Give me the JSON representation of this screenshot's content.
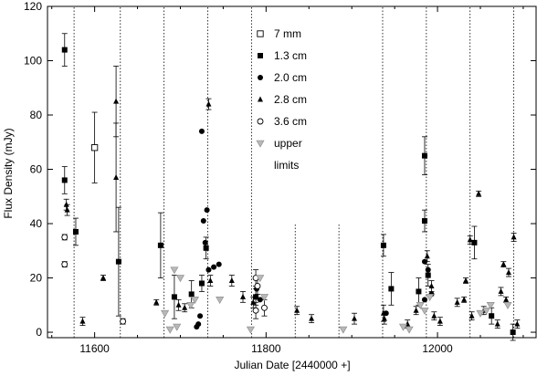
{
  "chart_data": {
    "type": "scatter",
    "title": "",
    "xlabel": "Julian Date [2440000 +]",
    "ylabel": "Flux Density (mJy)",
    "xlim": [
      11545,
      12115
    ],
    "ylim": [
      -2,
      120
    ],
    "xticks": [
      11600,
      11800,
      12000
    ],
    "yticks": [
      0,
      20,
      40,
      60,
      80,
      100,
      120
    ],
    "grid": false,
    "legend_position": "top-center",
    "legend": [
      {
        "label": "7 mm",
        "marker": "square-open"
      },
      {
        "label": "1.3 cm",
        "marker": "square-filled"
      },
      {
        "label": "2.0 cm",
        "marker": "circle-filled"
      },
      {
        "label": "2.8 cm",
        "marker": "triangle-filled"
      },
      {
        "label": "3.6 cm",
        "marker": "circle-open"
      },
      {
        "label": "upper",
        "marker": "triangle-down-gray"
      },
      {
        "label": "limits",
        "marker": "none"
      }
    ],
    "vertical_lines": [
      {
        "x": 11576,
        "y_top": 120
      },
      {
        "x": 11630,
        "y_top": 120
      },
      {
        "x": 11681,
        "y_top": 120
      },
      {
        "x": 11732,
        "y_top": 120
      },
      {
        "x": 11783,
        "y_top": 120
      },
      {
        "x": 11834,
        "y_top": 40
      },
      {
        "x": 11885,
        "y_top": 40
      },
      {
        "x": 11936,
        "y_top": 120
      },
      {
        "x": 11987,
        "y_top": 120
      },
      {
        "x": 12038,
        "y_top": 120
      },
      {
        "x": 12089,
        "y_top": 120
      }
    ],
    "series": [
      {
        "marker": "square-open",
        "points": [
          {
            "x": 11600,
            "y": 68,
            "err": 13
          }
        ]
      },
      {
        "marker": "square-filled",
        "points": [
          {
            "x": 11565,
            "y": 104,
            "err": 6
          },
          {
            "x": 11565,
            "y": 56,
            "err": 5
          },
          {
            "x": 11578,
            "y": 37,
            "err": 5
          },
          {
            "x": 11628,
            "y": 26,
            "err": 20
          },
          {
            "x": 11677,
            "y": 32,
            "err": 12
          },
          {
            "x": 11693,
            "y": 13,
            "err": 8
          },
          {
            "x": 11713,
            "y": 14,
            "err": 5
          },
          {
            "x": 11725,
            "y": 18,
            "err": 3
          },
          {
            "x": 11730,
            "y": 31,
            "err": 4
          },
          {
            "x": 11788,
            "y": 13,
            "err": 3
          },
          {
            "x": 11937,
            "y": 32,
            "err": 4
          },
          {
            "x": 11946,
            "y": 16,
            "err": 6
          },
          {
            "x": 11978,
            "y": 15,
            "err": 5
          },
          {
            "x": 11985,
            "y": 65,
            "err": 7
          },
          {
            "x": 11985,
            "y": 41,
            "err": 4
          },
          {
            "x": 11989,
            "y": 21,
            "err": 4
          },
          {
            "x": 12043,
            "y": 33,
            "err": 6
          },
          {
            "x": 12063,
            "y": 6,
            "err": 3
          },
          {
            "x": 12088,
            "y": 0,
            "err": 3
          }
        ]
      },
      {
        "marker": "circle-filled",
        "points": [
          {
            "x": 11719,
            "y": 2
          },
          {
            "x": 11721,
            "y": 3
          },
          {
            "x": 11723,
            "y": 6
          },
          {
            "x": 11725,
            "y": 74
          },
          {
            "x": 11727,
            "y": 41
          },
          {
            "x": 11729,
            "y": 33
          },
          {
            "x": 11731,
            "y": 45
          },
          {
            "x": 11733,
            "y": 23
          },
          {
            "x": 11739,
            "y": 24
          },
          {
            "x": 11745,
            "y": 25
          },
          {
            "x": 11789,
            "y": 16
          },
          {
            "x": 11793,
            "y": 12
          },
          {
            "x": 11940,
            "y": 7
          },
          {
            "x": 11985,
            "y": 26
          },
          {
            "x": 11989,
            "y": 23
          },
          {
            "x": 11993,
            "y": 14
          },
          {
            "x": 11985,
            "y": 12
          }
        ]
      },
      {
        "marker": "triangle-filled",
        "points": [
          {
            "x": 11567,
            "y": 47,
            "err": 2
          },
          {
            "x": 11568,
            "y": 45,
            "err": 2
          },
          {
            "x": 11586,
            "y": 4,
            "err": 1.5
          },
          {
            "x": 11610,
            "y": 20,
            "err": 1
          },
          {
            "x": 11625,
            "y": 85,
            "err": 13
          },
          {
            "x": 11625,
            "y": 57,
            "err": 20
          },
          {
            "x": 11672,
            "y": 11,
            "err": 1
          },
          {
            "x": 11698,
            "y": 10,
            "err": 2
          },
          {
            "x": 11705,
            "y": 9,
            "err": 1.5
          },
          {
            "x": 11733,
            "y": 84,
            "err": 2
          },
          {
            "x": 11735,
            "y": 19,
            "err": 2
          },
          {
            "x": 11760,
            "y": 19,
            "err": 2
          },
          {
            "x": 11773,
            "y": 13,
            "err": 2
          },
          {
            "x": 11785,
            "y": 11,
            "err": 2
          },
          {
            "x": 11836,
            "y": 8,
            "err": 1.5
          },
          {
            "x": 11853,
            "y": 5,
            "err": 1.5
          },
          {
            "x": 11903,
            "y": 5,
            "err": 2
          },
          {
            "x": 11937,
            "y": 7,
            "err": 3
          },
          {
            "x": 11938,
            "y": 5,
            "err": 2
          },
          {
            "x": 11965,
            "y": 3,
            "err": 1.5
          },
          {
            "x": 11975,
            "y": 8,
            "err": 1.5
          },
          {
            "x": 11988,
            "y": 28,
            "err": 2
          },
          {
            "x": 11993,
            "y": 17,
            "err": 2
          },
          {
            "x": 11996,
            "y": 6,
            "err": 1.5
          },
          {
            "x": 12003,
            "y": 4,
            "err": 1.5
          },
          {
            "x": 12023,
            "y": 11,
            "err": 1.5
          },
          {
            "x": 12031,
            "y": 12,
            "err": 1
          },
          {
            "x": 12033,
            "y": 19,
            "err": 1
          },
          {
            "x": 12038,
            "y": 34,
            "err": 1.5
          },
          {
            "x": 12040,
            "y": 6,
            "err": 1.5
          },
          {
            "x": 12048,
            "y": 51,
            "err": 1
          },
          {
            "x": 12054,
            "y": 8,
            "err": 1.5
          },
          {
            "x": 12070,
            "y": 3,
            "err": 1.5
          },
          {
            "x": 12074,
            "y": 15,
            "err": 1.5
          },
          {
            "x": 12077,
            "y": 25,
            "err": 1
          },
          {
            "x": 12080,
            "y": 12,
            "err": 1
          },
          {
            "x": 12083,
            "y": 22,
            "err": 1.5
          },
          {
            "x": 12089,
            "y": 35,
            "err": 1.5
          },
          {
            "x": 12093,
            "y": 3,
            "err": 1.5
          }
        ]
      },
      {
        "marker": "circle-open",
        "points": [
          {
            "x": 11565,
            "y": 35,
            "err": 1
          },
          {
            "x": 11565,
            "y": 25,
            "err": 1
          },
          {
            "x": 11633,
            "y": 4,
            "err": 1
          },
          {
            "x": 11788,
            "y": 20,
            "err": 3
          },
          {
            "x": 11788,
            "y": 8,
            "err": 3
          },
          {
            "x": 11790,
            "y": 17,
            "err": 3
          },
          {
            "x": 11798,
            "y": 9,
            "err": 3
          }
        ]
      },
      {
        "marker": "triangle-down-gray",
        "points": [
          {
            "x": 11682,
            "y": 7
          },
          {
            "x": 11688,
            "y": 1
          },
          {
            "x": 11693,
            "y": 23
          },
          {
            "x": 11696,
            "y": 2
          },
          {
            "x": 11700,
            "y": 20
          },
          {
            "x": 11712,
            "y": 10
          },
          {
            "x": 11717,
            "y": 12
          },
          {
            "x": 11746,
            "y": 12
          },
          {
            "x": 11782,
            "y": 1
          },
          {
            "x": 11793,
            "y": 20
          },
          {
            "x": 11798,
            "y": 13
          },
          {
            "x": 11890,
            "y": 1
          },
          {
            "x": 11960,
            "y": 2
          },
          {
            "x": 11967,
            "y": 1
          },
          {
            "x": 11980,
            "y": 10
          },
          {
            "x": 11985,
            "y": 8
          },
          {
            "x": 11991,
            "y": 13
          },
          {
            "x": 12050,
            "y": 7
          },
          {
            "x": 12057,
            "y": 8
          },
          {
            "x": 12062,
            "y": 10
          },
          {
            "x": 12082,
            "y": 10
          }
        ]
      }
    ]
  }
}
